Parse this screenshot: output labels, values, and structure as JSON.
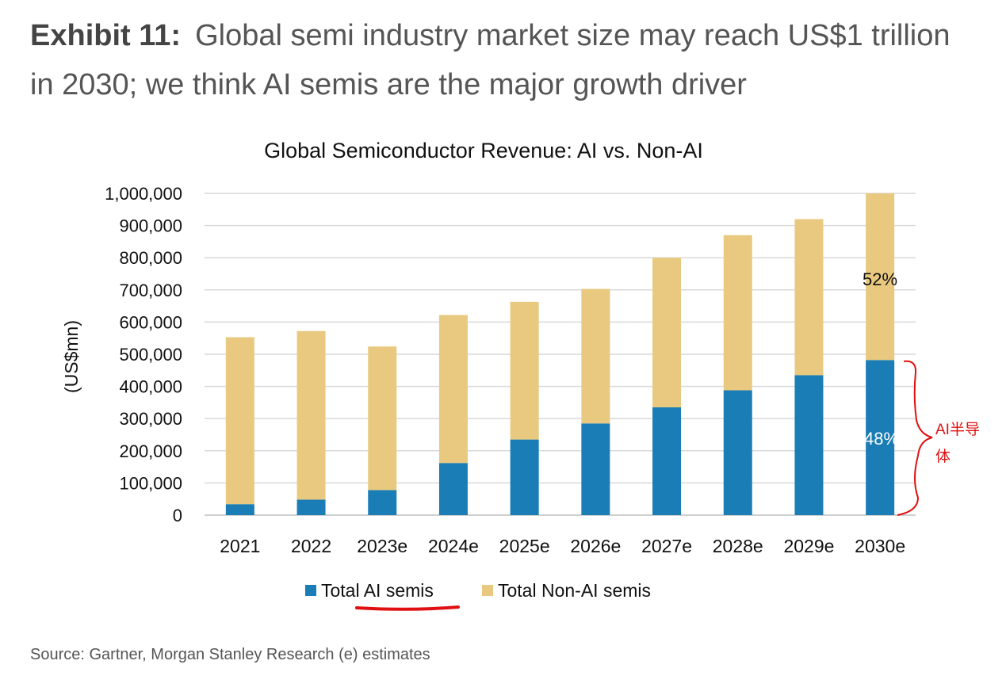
{
  "exhibit": {
    "label": "Exhibit 11:",
    "title": "Global semi industry market size may reach US$1 trillion in 2030; we think AI semis are the major growth driver"
  },
  "chart_data": {
    "type": "bar",
    "stacked": true,
    "title": "Global Semiconductor Revenue: AI vs. Non-AI",
    "xlabel": "",
    "ylabel": "(US$mn)",
    "ylim": [
      0,
      1000000
    ],
    "yticks": [
      "1,000,000",
      "900,000",
      "800,000",
      "700,000",
      "600,000",
      "500,000",
      "400,000",
      "300,000",
      "200,000",
      "100,000",
      "0"
    ],
    "categories": [
      "2021",
      "2022",
      "2023e",
      "2024e",
      "2025e",
      "2026e",
      "2027e",
      "2028e",
      "2029e",
      "2030e"
    ],
    "series": [
      {
        "name": "Total AI semis",
        "color": "#1a7db5",
        "values": [
          34000,
          48000,
          78000,
          162000,
          235000,
          285000,
          335000,
          388000,
          435000,
          482000
        ]
      },
      {
        "name": "Total Non-AI semis",
        "color": "#e9c97f",
        "values": [
          519000,
          524000,
          446000,
          460000,
          428000,
          418000,
          465000,
          482000,
          485000,
          518000
        ]
      }
    ],
    "grid": true,
    "legend": "bottom",
    "annotations": {
      "non_ai_share_2030": "52%",
      "ai_share_2030": "48%",
      "handwritten_label_line1": "AI半导",
      "handwritten_label_line2": "体"
    }
  },
  "source": "Source: Gartner, Morgan Stanley Research (e) estimates"
}
